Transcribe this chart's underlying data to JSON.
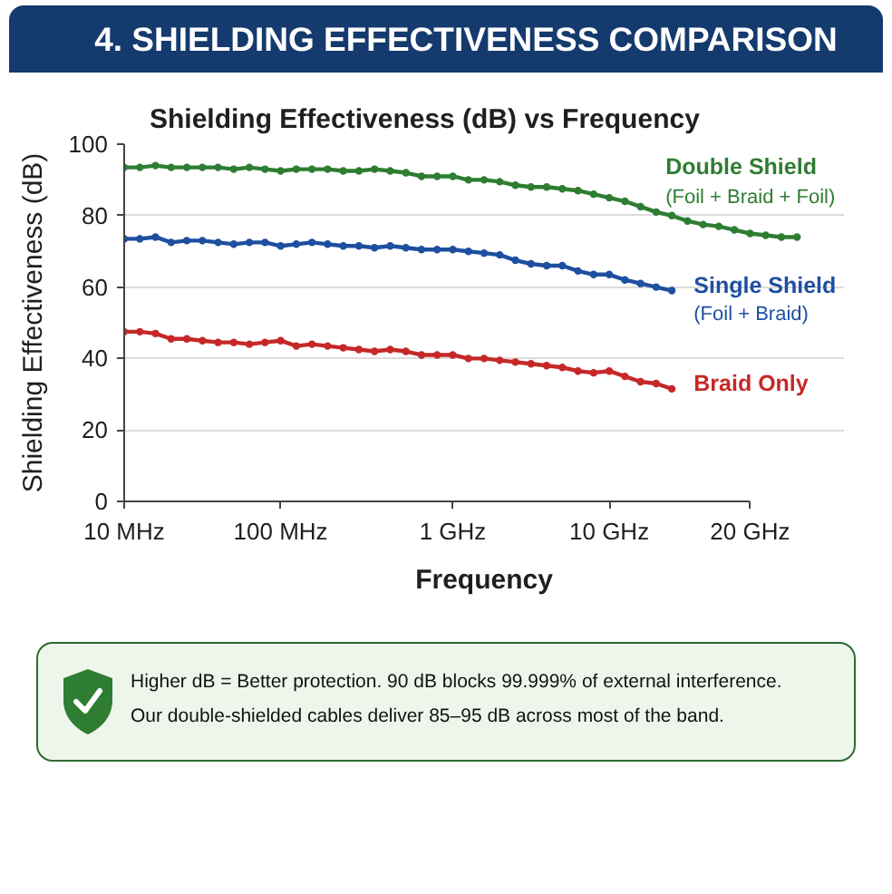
{
  "chart_data": {
    "type": "line",
    "title": "4. SHIELDING EFFECTIVENESS COMPARISON",
    "subtitle": "Shielding Effectiveness (dB) vs Frequency",
    "xlabel": "Frequency",
    "ylabel": "Shielding Effectiveness (dB)",
    "categories": [
      "10 MHz",
      null,
      null,
      null,
      null,
      null,
      null,
      null,
      null,
      null,
      "100 MHz",
      null,
      null,
      null,
      null,
      null,
      null,
      null,
      null,
      null,
      null,
      "1 GHz",
      null,
      null,
      null,
      null,
      null,
      null,
      null,
      null,
      null,
      "10 GHz",
      null,
      null,
      null,
      null,
      null,
      null,
      null,
      null,
      "20 GHz",
      null,
      null,
      null
    ],
    "series": [
      {
        "name": "Double Shield\n(Foil + Braid + Foil)",
        "color": "#2e7d32",
        "values": [
          93.5,
          93.5,
          94,
          93.5,
          93.5,
          93.5,
          93.5,
          93,
          93.5,
          93,
          92.5,
          93,
          93,
          93,
          92.5,
          92.5,
          93,
          92.5,
          92,
          91,
          91,
          91,
          90,
          90,
          89.5,
          88.5,
          88,
          88,
          87.5,
          87,
          86,
          85,
          84,
          82.5,
          81,
          80,
          78.5,
          77.5,
          77,
          76,
          75,
          74.5,
          74,
          74
        ]
      },
      {
        "name": "Single Shield\n(Foil + Braid)",
        "color": "#1e4fa0",
        "values": [
          73.5,
          73.5,
          74,
          72.5,
          73,
          73,
          72.5,
          72,
          72.5,
          72.5,
          71.5,
          72,
          72.5,
          72,
          71.5,
          71.5,
          71,
          71.5,
          71,
          70.5,
          70.5,
          70.5,
          70,
          69.5,
          69,
          67.5,
          66.5,
          66,
          66,
          64.5,
          63.5,
          63.5,
          62,
          61,
          60,
          59,
          null,
          null,
          null,
          null,
          null,
          null,
          null,
          null
        ]
      },
      {
        "name": "Braid Only",
        "color": "#c62828",
        "values": [
          47.5,
          47.5,
          47,
          45.5,
          45.5,
          45,
          44.5,
          44.5,
          44,
          44.5,
          45,
          43.5,
          44,
          43.5,
          43,
          42.5,
          42,
          42.5,
          42,
          41,
          41,
          41,
          40,
          40,
          39.5,
          39,
          38.5,
          38,
          37.5,
          36.5,
          36,
          36.5,
          35,
          33.5,
          33,
          31.5,
          null,
          null,
          null,
          null,
          null,
          null,
          null,
          null
        ]
      }
    ],
    "ylim": [
      0,
      100
    ],
    "yticks": [
      0,
      20,
      40,
      60,
      80,
      100
    ],
    "grid": "y",
    "marker": "circle",
    "annotations": [
      "Higher dB = Better protection. 90 dB blocks 99.999% of external interference.",
      "Our double-shielded cables deliver 85–95 dB across most of the band."
    ]
  }
}
